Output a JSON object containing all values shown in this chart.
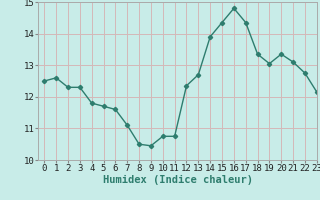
{
  "x": [
    0,
    1,
    2,
    3,
    4,
    5,
    6,
    7,
    8,
    9,
    10,
    11,
    12,
    13,
    14,
    15,
    16,
    17,
    18,
    19,
    20,
    21,
    22,
    23
  ],
  "y": [
    12.5,
    12.6,
    12.3,
    12.3,
    11.8,
    11.7,
    11.6,
    11.1,
    10.5,
    10.45,
    10.75,
    10.75,
    12.35,
    12.7,
    13.9,
    14.35,
    14.8,
    14.35,
    13.35,
    13.05,
    13.35,
    13.1,
    12.75,
    12.15
  ],
  "xlabel": "Humidex (Indice chaleur)",
  "ylim": [
    10,
    15
  ],
  "xlim": [
    -0.5,
    23
  ],
  "yticks": [
    10,
    11,
    12,
    13,
    14,
    15
  ],
  "xticks": [
    0,
    1,
    2,
    3,
    4,
    5,
    6,
    7,
    8,
    9,
    10,
    11,
    12,
    13,
    14,
    15,
    16,
    17,
    18,
    19,
    20,
    21,
    22,
    23
  ],
  "line_color": "#2e7d6e",
  "marker": "D",
  "marker_size": 2.2,
  "bg_color": "#c8ece8",
  "grid_color": "#d4b8b8",
  "tick_label_fontsize": 6.5,
  "xlabel_fontsize": 7.5,
  "line_width": 1.0
}
